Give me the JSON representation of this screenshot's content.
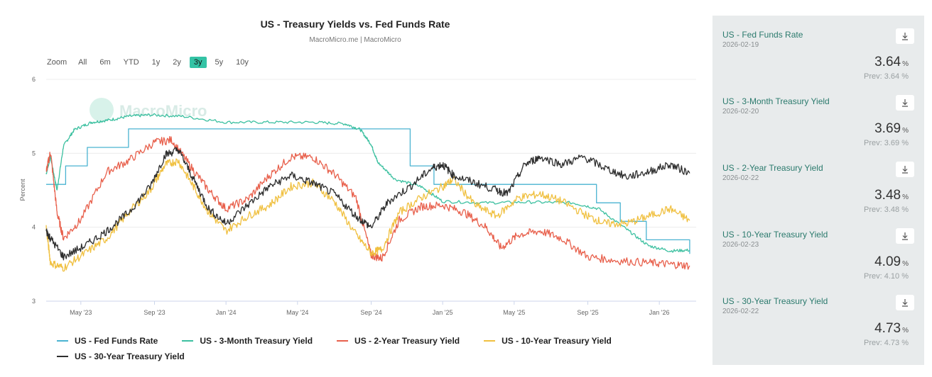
{
  "chart": {
    "title": "US - Treasury Yields vs. Fed Funds Rate",
    "subtitle": "MacroMicro.me | MacroMicro",
    "watermark": "MacroMicro"
  },
  "zoom": {
    "label": "Zoom",
    "options": [
      "All",
      "6m",
      "YTD",
      "1y",
      "2y",
      "3y",
      "5y",
      "10y"
    ],
    "selected": "3y"
  },
  "side_panel": {
    "items": [
      {
        "name": "US - Fed Funds Rate",
        "date": "2026-02-19",
        "value": "3.64",
        "unit": "%",
        "prev": "Prev: 3.64 %"
      },
      {
        "name": "US - 3-Month Treasury Yield",
        "date": "2026-02-20",
        "value": "3.69",
        "unit": "%",
        "prev": "Prev: 3.69 %"
      },
      {
        "name": "US - 2-Year Treasury Yield",
        "date": "2026-02-22",
        "value": "3.48",
        "unit": "%",
        "prev": "Prev: 3.48 %"
      },
      {
        "name": "US - 10-Year Treasury Yield",
        "date": "2026-02-23",
        "value": "4.09",
        "unit": "%",
        "prev": "Prev: 4.10 %"
      },
      {
        "name": "US - 30-Year Treasury Yield",
        "date": "2026-02-22",
        "value": "4.73",
        "unit": "%",
        "prev": "Prev: 4.73 %"
      }
    ]
  },
  "chart_data": {
    "type": "line",
    "title": "US - Treasury Yields vs. Fed Funds Rate",
    "xlabel": "",
    "ylabel": "Percent",
    "ylim": [
      3,
      6
    ],
    "xlim": [
      2023.17,
      2026.17
    ],
    "yticks": [
      3,
      4,
      5,
      6
    ],
    "xticks": [
      {
        "label": "May '23",
        "t": 2023.33
      },
      {
        "label": "Sep '23",
        "t": 2023.67
      },
      {
        "label": "Jan '24",
        "t": 2024.0
      },
      {
        "label": "May '24",
        "t": 2024.33
      },
      {
        "label": "Sep '24",
        "t": 2024.67
      },
      {
        "label": "Jan '25",
        "t": 2025.0
      },
      {
        "label": "May '25",
        "t": 2025.33
      },
      {
        "label": "Sep '25",
        "t": 2025.67
      },
      {
        "label": "Jan '26",
        "t": 2026.0
      }
    ],
    "grid": true,
    "legend_position": "bottom",
    "series": [
      {
        "name": "US - Fed Funds Rate",
        "color": "#4ab3d1",
        "step": true,
        "x": [
          2023.17,
          2023.2,
          2023.26,
          2023.36,
          2023.42,
          2023.55,
          2024.71,
          2024.85,
          2024.96,
          2025.71,
          2025.82,
          2025.94,
          2026.14
        ],
        "y": [
          4.58,
          4.58,
          4.83,
          5.08,
          5.08,
          5.33,
          5.33,
          4.83,
          4.58,
          4.33,
          4.08,
          3.83,
          3.64
        ]
      },
      {
        "name": "US - 3-Month Treasury Yield",
        "color": "#3cc0a0",
        "x": [
          2023.17,
          2023.19,
          2023.22,
          2023.25,
          2023.3,
          2023.38,
          2023.46,
          2023.55,
          2023.65,
          2023.8,
          2024.0,
          2024.2,
          2024.4,
          2024.55,
          2024.62,
          2024.67,
          2024.7,
          2024.78,
          2024.9,
          2025.0,
          2025.2,
          2025.4,
          2025.6,
          2025.72,
          2025.85,
          2025.95,
          2026.05,
          2026.14
        ],
        "y": [
          4.72,
          4.95,
          4.5,
          5.1,
          5.32,
          5.42,
          5.45,
          5.5,
          5.52,
          5.5,
          5.42,
          5.42,
          5.42,
          5.4,
          5.32,
          5.12,
          4.88,
          4.65,
          4.55,
          4.35,
          4.33,
          4.34,
          4.33,
          4.25,
          3.97,
          3.75,
          3.68,
          3.69
        ]
      },
      {
        "name": "US - 2-Year Treasury Yield",
        "color": "#e8604c",
        "x": [
          2023.17,
          2023.19,
          2023.22,
          2023.25,
          2023.33,
          2023.45,
          2023.55,
          2023.67,
          2023.75,
          2023.83,
          2023.92,
          2024.0,
          2024.1,
          2024.2,
          2024.3,
          2024.4,
          2024.5,
          2024.6,
          2024.67,
          2024.72,
          2024.8,
          2024.9,
          2025.0,
          2025.1,
          2025.2,
          2025.27,
          2025.35,
          2025.45,
          2025.55,
          2025.67,
          2025.8,
          2025.95,
          2026.05,
          2026.14
        ],
        "y": [
          4.75,
          5.02,
          4.2,
          3.85,
          4.1,
          4.75,
          4.9,
          5.15,
          5.18,
          4.85,
          4.5,
          4.25,
          4.38,
          4.7,
          4.95,
          4.95,
          4.72,
          4.4,
          3.62,
          3.58,
          4.1,
          4.28,
          4.3,
          4.2,
          4.0,
          3.72,
          3.9,
          3.95,
          3.85,
          3.6,
          3.55,
          3.52,
          3.5,
          3.48
        ]
      },
      {
        "name": "US - 10-Year Treasury Yield",
        "color": "#f0c040",
        "x": [
          2023.17,
          2023.19,
          2023.25,
          2023.35,
          2023.45,
          2023.55,
          2023.65,
          2023.72,
          2023.78,
          2023.85,
          2023.92,
          2024.0,
          2024.1,
          2024.2,
          2024.3,
          2024.4,
          2024.5,
          2024.6,
          2024.67,
          2024.72,
          2024.8,
          2024.9,
          2025.0,
          2025.05,
          2025.15,
          2025.25,
          2025.35,
          2025.45,
          2025.55,
          2025.67,
          2025.75,
          2025.85,
          2025.95,
          2026.05,
          2026.14
        ],
        "y": [
          4.0,
          3.52,
          3.45,
          3.65,
          3.85,
          4.2,
          4.5,
          4.85,
          4.9,
          4.55,
          4.2,
          3.95,
          4.15,
          4.3,
          4.55,
          4.6,
          4.35,
          3.9,
          3.65,
          3.7,
          4.2,
          4.4,
          4.55,
          4.65,
          4.3,
          4.15,
          4.4,
          4.45,
          4.35,
          4.15,
          4.05,
          4.05,
          4.15,
          4.25,
          4.09
        ]
      },
      {
        "name": "US - 30-Year Treasury Yield",
        "color": "#2e2e2e",
        "x": [
          2023.17,
          2023.19,
          2023.25,
          2023.35,
          2023.45,
          2023.55,
          2023.65,
          2023.72,
          2023.78,
          2023.85,
          2023.92,
          2024.0,
          2024.1,
          2024.2,
          2024.3,
          2024.4,
          2024.5,
          2024.6,
          2024.67,
          2024.75,
          2024.85,
          2024.95,
          2025.0,
          2025.05,
          2025.15,
          2025.25,
          2025.3,
          2025.38,
          2025.45,
          2025.55,
          2025.65,
          2025.75,
          2025.85,
          2025.95,
          2026.05,
          2026.14
        ],
        "y": [
          3.95,
          3.85,
          3.6,
          3.75,
          3.95,
          4.2,
          4.55,
          4.98,
          5.05,
          4.65,
          4.25,
          4.05,
          4.3,
          4.55,
          4.7,
          4.6,
          4.45,
          4.15,
          4.0,
          4.35,
          4.55,
          4.8,
          4.85,
          4.7,
          4.6,
          4.5,
          4.45,
          4.85,
          4.95,
          4.85,
          4.95,
          4.8,
          4.68,
          4.75,
          4.85,
          4.73
        ]
      }
    ]
  }
}
